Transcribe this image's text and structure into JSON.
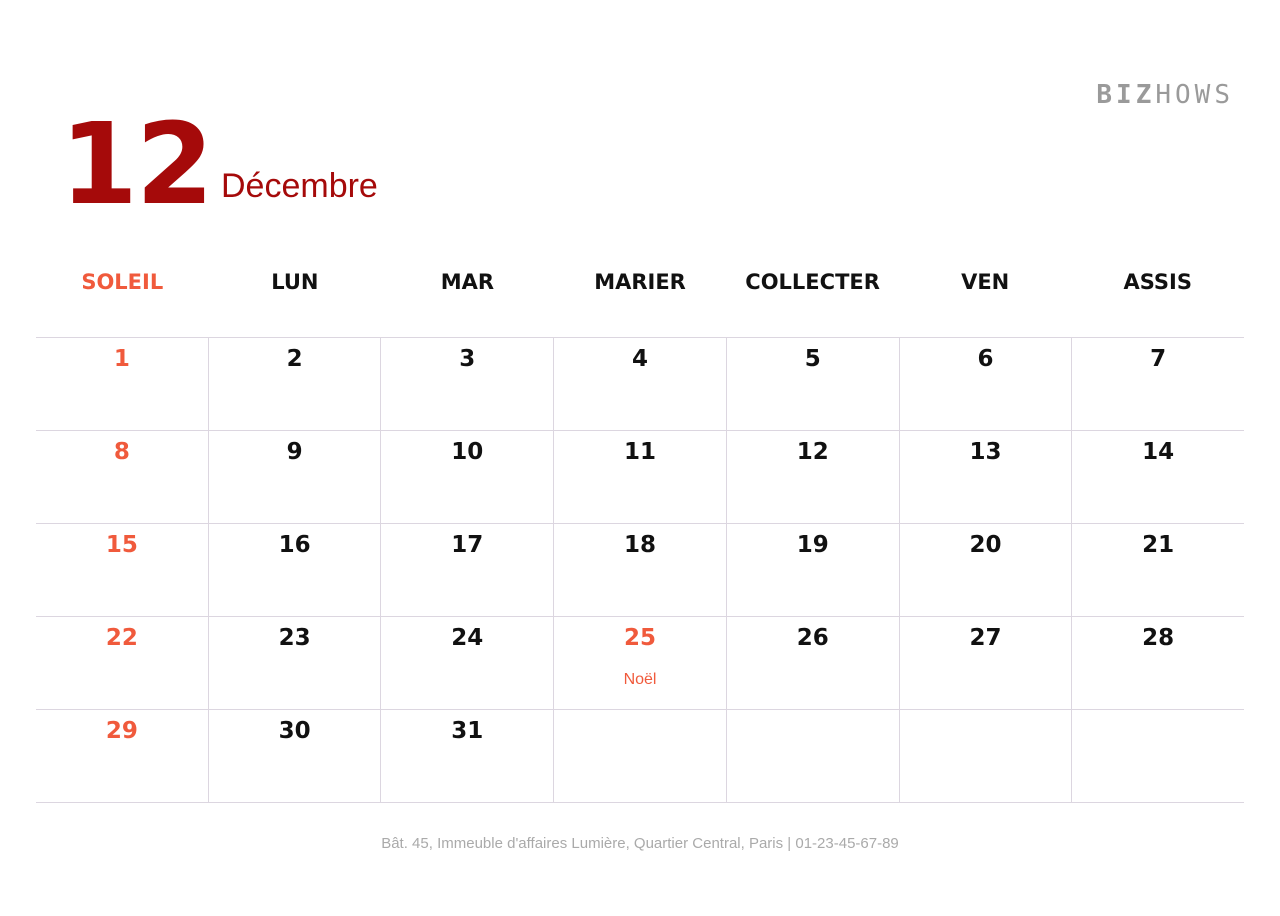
{
  "brand": {
    "part1": "BIZ",
    "part2": "HOWS"
  },
  "header": {
    "month_number": "12",
    "month_name": "Décembre"
  },
  "colors": {
    "accent": "#a50a0a",
    "sunday": "#f05a3c",
    "grid": "#dcd6e0"
  },
  "weekdays": [
    "SOLEIL",
    "LUN",
    "MAR",
    "MARIER",
    "COLLECTER",
    "VEN",
    "ASSIS"
  ],
  "weeks": [
    [
      {
        "day": "1"
      },
      {
        "day": "2"
      },
      {
        "day": "3"
      },
      {
        "day": "4"
      },
      {
        "day": "5"
      },
      {
        "day": "6"
      },
      {
        "day": "7"
      }
    ],
    [
      {
        "day": "8"
      },
      {
        "day": "9"
      },
      {
        "day": "10"
      },
      {
        "day": "11"
      },
      {
        "day": "12"
      },
      {
        "day": "13"
      },
      {
        "day": "14"
      }
    ],
    [
      {
        "day": "15"
      },
      {
        "day": "16"
      },
      {
        "day": "17"
      },
      {
        "day": "18"
      },
      {
        "day": "19"
      },
      {
        "day": "20"
      },
      {
        "day": "21"
      }
    ],
    [
      {
        "day": "22"
      },
      {
        "day": "23"
      },
      {
        "day": "24"
      },
      {
        "day": "25",
        "event": "Noël",
        "holiday": true
      },
      {
        "day": "26"
      },
      {
        "day": "27"
      },
      {
        "day": "28"
      }
    ],
    [
      {
        "day": "29"
      },
      {
        "day": "30"
      },
      {
        "day": "31"
      },
      {
        "day": ""
      },
      {
        "day": ""
      },
      {
        "day": ""
      },
      {
        "day": ""
      }
    ]
  ],
  "footer": "Bât. 45, Immeuble d'affaires Lumière, Quartier Central, Paris | 01-23-45-67-89"
}
